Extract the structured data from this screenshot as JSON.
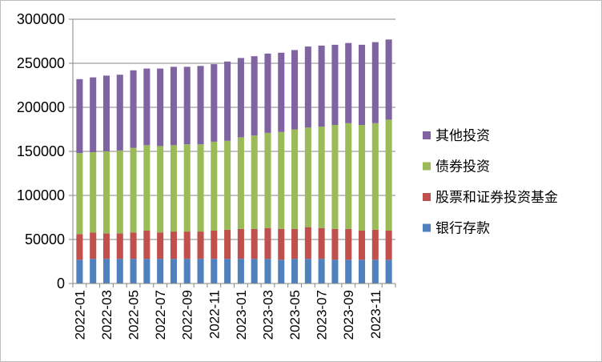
{
  "chart_data": {
    "type": "bar",
    "stacked": true,
    "title": "",
    "xlabel": "",
    "ylabel": "",
    "ylim": [
      0,
      300000
    ],
    "y_ticks": [
      0,
      50000,
      100000,
      150000,
      200000,
      250000,
      300000
    ],
    "y_tick_labels": [
      "0",
      "50000",
      "100000",
      "150000",
      "200000",
      "250000",
      "300000"
    ],
    "grid": "horizontal",
    "legend_position": "right",
    "categories": [
      "2022-01",
      "2022-02",
      "2022-03",
      "2022-04",
      "2022-05",
      "2022-06",
      "2022-07",
      "2022-08",
      "2022-09",
      "2022-10",
      "2022-11",
      "2022-12",
      "2023-01",
      "2023-02",
      "2023-03",
      "2023-04",
      "2023-05",
      "2023-06",
      "2023-07",
      "2023-08",
      "2023-09",
      "2023-10",
      "2023-11",
      "2023-12"
    ],
    "x_tick_labels": [
      "2022-01",
      "2022-03",
      "2022-05",
      "2022-07",
      "2022-09",
      "2022-11",
      "2023-01",
      "2023-03",
      "2023-05",
      "2023-07",
      "2023-09",
      "2023-11"
    ],
    "series": [
      {
        "name": "银行存款",
        "color": "#4f81bd",
        "values": [
          27000,
          28000,
          28000,
          28000,
          28000,
          28000,
          28000,
          28000,
          28000,
          28000,
          28000,
          28000,
          28000,
          28000,
          28000,
          27000,
          28000,
          28000,
          28000,
          27000,
          27000,
          27000,
          27000,
          27000
        ]
      },
      {
        "name": "股票和证券投资基金",
        "color": "#c0504d",
        "values": [
          29000,
          30000,
          29000,
          29000,
          30000,
          32000,
          30000,
          31000,
          31000,
          31000,
          32000,
          33000,
          34000,
          34000,
          35000,
          35000,
          34000,
          36000,
          35000,
          35000,
          35000,
          33000,
          34000,
          33000
        ]
      },
      {
        "name": "债券投资",
        "color": "#9bbb59",
        "values": [
          92000,
          91000,
          93000,
          94000,
          96000,
          97000,
          98000,
          98000,
          99000,
          99000,
          101000,
          101000,
          104000,
          106000,
          108000,
          110000,
          113000,
          113000,
          115000,
          118000,
          120000,
          120000,
          121000,
          126000
        ]
      },
      {
        "name": "其他投资",
        "color": "#8064a2",
        "values": [
          84000,
          85000,
          86000,
          86000,
          88000,
          87000,
          88000,
          89000,
          88000,
          89000,
          88000,
          90000,
          90000,
          90000,
          90000,
          90000,
          90000,
          92000,
          92000,
          91000,
          91000,
          91000,
          92000,
          91000
        ]
      }
    ],
    "legend_order": [
      "其他投资",
      "债券投资",
      "股票和证券投资基金",
      "银行存款"
    ]
  }
}
